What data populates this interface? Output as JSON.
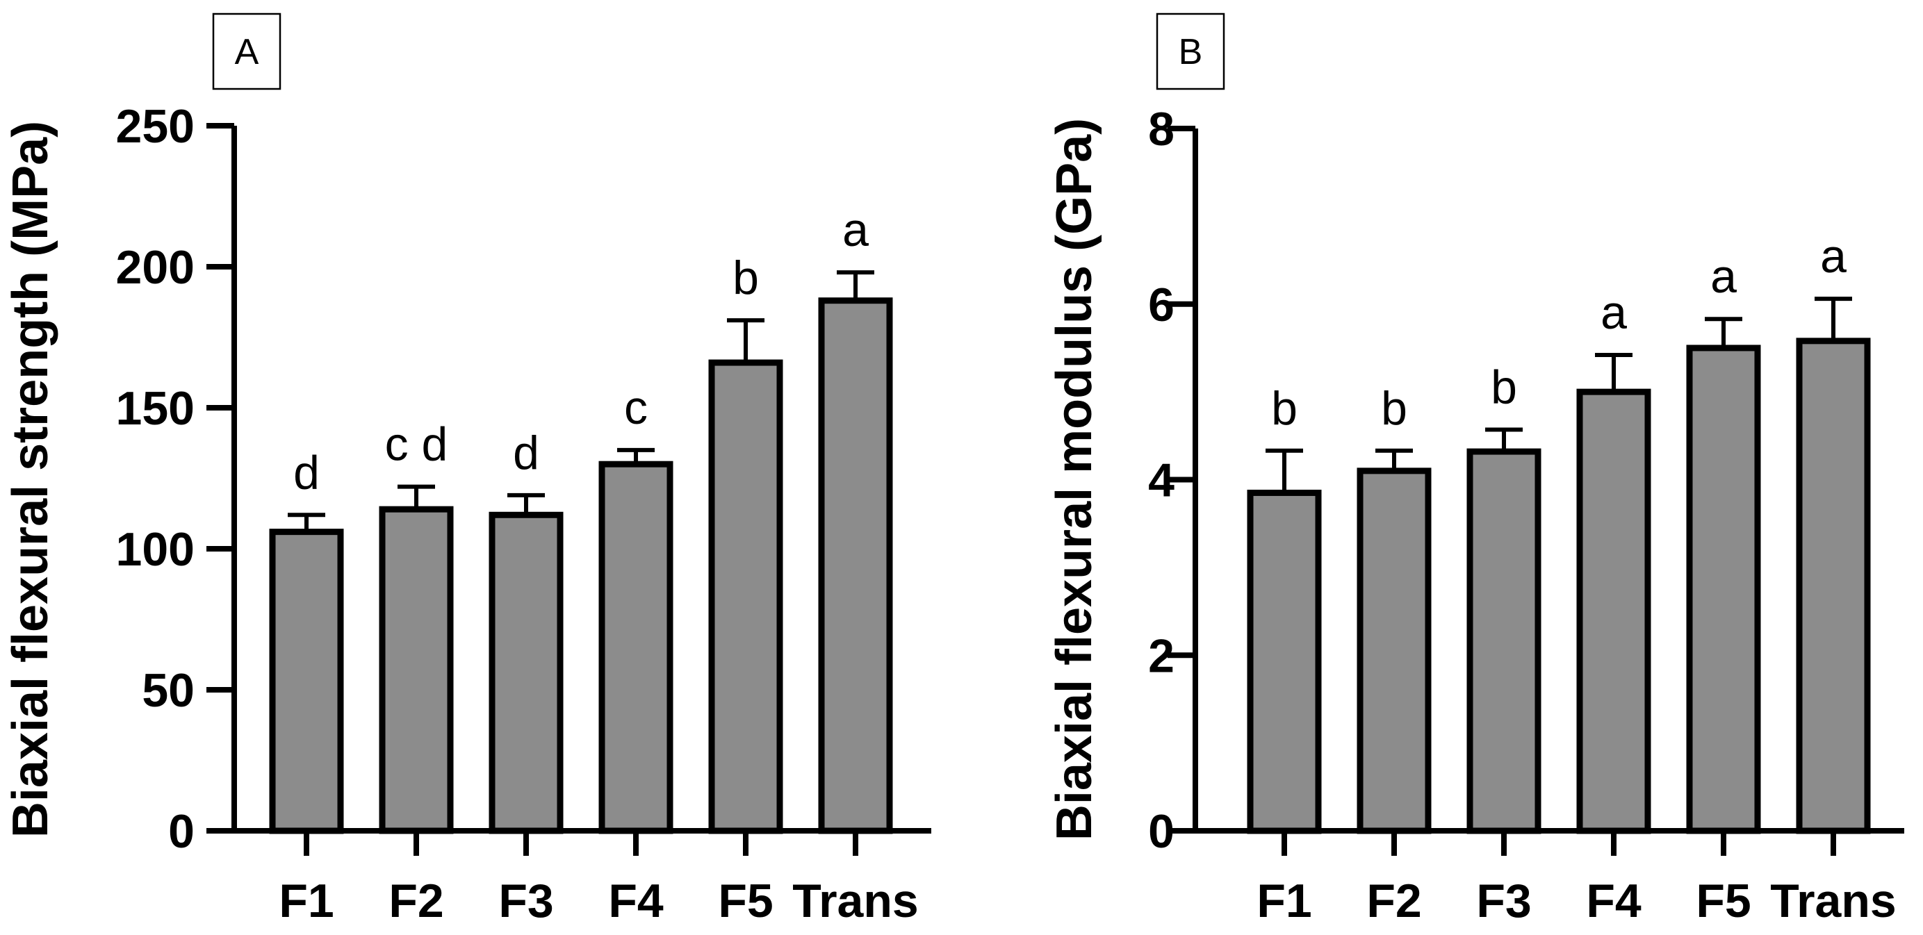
{
  "chart_data": [
    {
      "type": "bar",
      "panel_label": "A",
      "title": "",
      "xlabel": "",
      "ylabel": "Biaxial flexural strength (MPa)",
      "categories": [
        "F1",
        "F2",
        "F3",
        "F4",
        "F5",
        "Trans"
      ],
      "values": [
        106,
        114,
        112,
        130,
        166,
        188
      ],
      "error_upper": [
        6,
        8,
        7,
        5,
        15,
        10
      ],
      "significance": [
        "d",
        "c d",
        "d",
        "c",
        "b",
        "a"
      ],
      "ylim": [
        0,
        250
      ],
      "yticks": [
        0,
        50,
        100,
        150,
        200,
        250
      ],
      "ytick_labels": [
        "0",
        "50",
        "100",
        "150",
        "200",
        "250"
      ],
      "grid": false,
      "bar_color": "#8c8c8c"
    },
    {
      "type": "bar",
      "panel_label": "B",
      "title": "",
      "xlabel": "",
      "ylabel": "Biaxial flexural modulus (GPa)",
      "categories": [
        "F1",
        "F2",
        "F3",
        "F4",
        "F5",
        "Trans"
      ],
      "values": [
        3.85,
        4.1,
        4.32,
        5.0,
        5.5,
        5.58
      ],
      "error_upper": [
        0.48,
        0.23,
        0.25,
        0.42,
        0.33,
        0.48
      ],
      "significance": [
        "b",
        "b",
        "b",
        "a",
        "a",
        "a"
      ],
      "ylim": [
        0,
        8
      ],
      "yticks": [
        0,
        2,
        4,
        6,
        8
      ],
      "ytick_labels": [
        "0",
        "2",
        "4",
        "6",
        "8"
      ],
      "grid": false,
      "bar_color": "#8c8c8c"
    }
  ]
}
